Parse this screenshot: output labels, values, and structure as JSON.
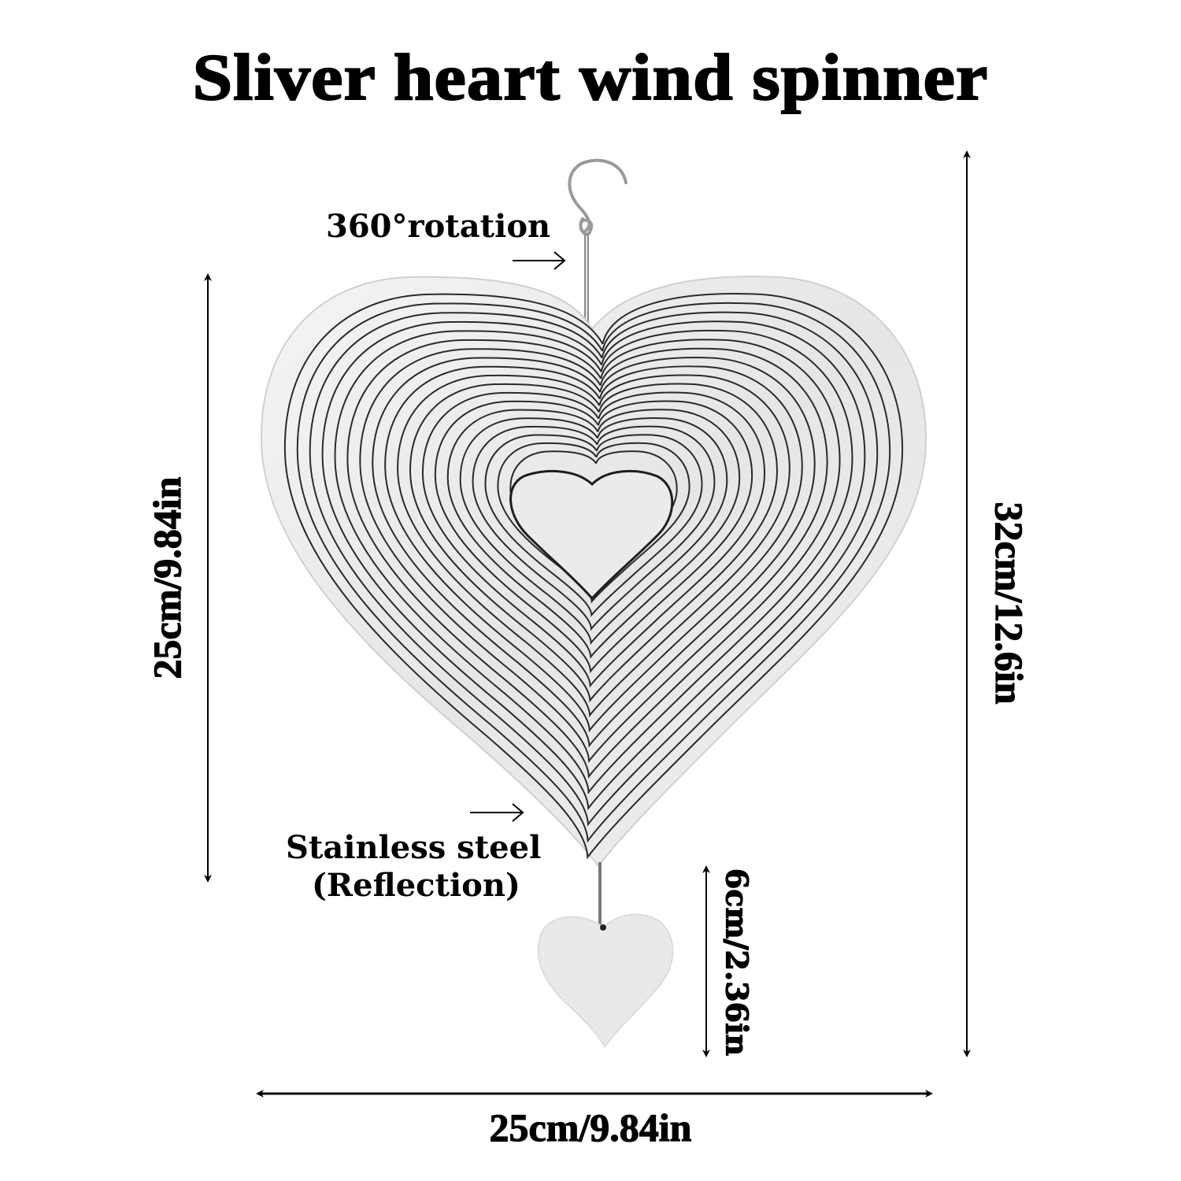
{
  "title": "Sliver heart wind spinner",
  "callouts": {
    "rotation": "360°rotation",
    "material_line1": "Stainless steel",
    "material_line2": "(Reflection)"
  },
  "dimensions": {
    "heart_height": "25cm/9.84in",
    "total_height": "32cm/12.6in",
    "pendant_height": "6cm/2.36in",
    "width": "25cm/9.84in"
  },
  "colors": {
    "background": "#ffffff",
    "text": "#000000",
    "metal_fill": "#ececec",
    "groove": "#2a2a2a"
  },
  "icons": {
    "hook": "s-hook-icon",
    "arrow": "arrow-right-icon",
    "dimension_arrow": "double-headed-arrow-icon"
  }
}
